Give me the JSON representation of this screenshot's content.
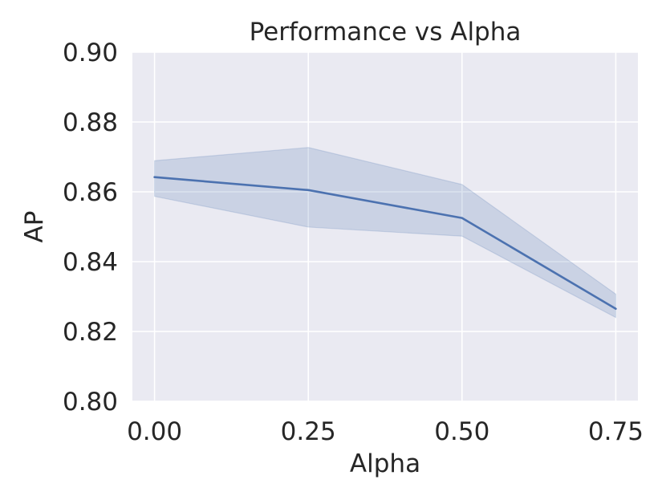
{
  "chart_data": {
    "type": "line",
    "title": "Performance vs Alpha",
    "xlabel": "Alpha",
    "ylabel": "AP",
    "x": [
      0.0,
      0.25,
      0.5,
      0.75
    ],
    "x_tick_labels": [
      "0.00",
      "0.25",
      "0.50",
      "0.75"
    ],
    "y_ticks": [
      0.8,
      0.82,
      0.84,
      0.86,
      0.88,
      0.9
    ],
    "y_tick_labels": [
      "0.80",
      "0.82",
      "0.84",
      "0.86",
      "0.88",
      "0.90"
    ],
    "xlim": [
      -0.036,
      0.786
    ],
    "ylim": [
      0.8,
      0.9
    ],
    "grid": true,
    "legend": false,
    "series": [
      {
        "values": [
          0.8642,
          0.8605,
          0.8525,
          0.8265
        ],
        "band_lower": [
          0.8587,
          0.8499,
          0.8473,
          0.824
        ],
        "band_upper": [
          0.8689,
          0.8727,
          0.8621,
          0.8307
        ],
        "color": "#4c72b0"
      }
    ],
    "background_color": "#eaeaf2",
    "grid_color": "#ffffff"
  }
}
